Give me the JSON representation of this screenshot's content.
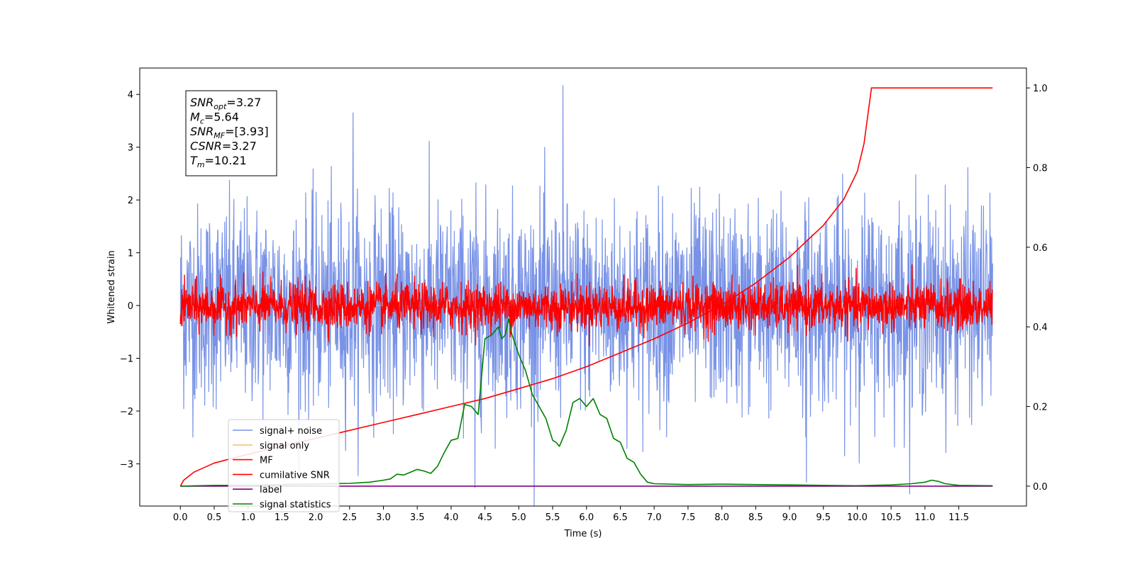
{
  "chart_data": {
    "type": "line",
    "xlabel": "Time (s)",
    "ylabel": "Whitened strain",
    "xlim": [
      -0.6,
      12.5
    ],
    "ylim": [
      -3.8,
      4.5
    ],
    "y2lim": [
      -0.05,
      1.05
    ],
    "x_ticks": [
      "0.0",
      "0.5",
      "1.0",
      "1.5",
      "2.0",
      "2.5",
      "3.0",
      "3.5",
      "4.0",
      "4.5",
      "5.0",
      "5.5",
      "6.0",
      "6.5",
      "7.0",
      "7.5",
      "8.0",
      "8.5",
      "9.0",
      "9.5",
      "10.0",
      "10.5",
      "11.0",
      "11.5"
    ],
    "y_ticks": [
      "−3",
      "−2",
      "−1",
      "0",
      "1",
      "2",
      "3",
      "4"
    ],
    "y_tick_values": [
      -3,
      -2,
      -1,
      0,
      1,
      2,
      3,
      4
    ],
    "y2_ticks": [
      "0.0",
      "0.2",
      "0.4",
      "0.6",
      "0.8",
      "1.0"
    ],
    "y2_tick_values": [
      0.0,
      0.2,
      0.4,
      0.6,
      0.8,
      1.0
    ],
    "legend": {
      "placement": "lower-left",
      "entries": [
        {
          "name": "signal+ noise",
          "color": "#7892e6"
        },
        {
          "name": "signal only",
          "color": "#f7c27a"
        },
        {
          "name": "MF",
          "color": "#ff0000"
        },
        {
          "name": "cumilative SNR",
          "color": "#ff0000"
        },
        {
          "name": "label",
          "color": "#800080"
        },
        {
          "name": "signal statistics",
          "color": "#008000"
        }
      ]
    },
    "annotation": {
      "lines": [
        {
          "sym": "SNR",
          "sub": "opt",
          "val": "=3.27"
        },
        {
          "sym": "M",
          "sub": "c",
          "val": "=5.64"
        },
        {
          "sym": "SNR",
          "sub": "MF",
          "val": "=[3.93]"
        },
        {
          "sym": "CSNR",
          "sub": "",
          "val": "=3.27"
        },
        {
          "sym": "T",
          "sub": "m",
          "val": "=10.21"
        }
      ]
    },
    "series": [
      {
        "name": "signal+ noise",
        "axis": "left",
        "color": "#7892e6",
        "x_range": [
          0,
          12
        ],
        "mean": 0.0,
        "std": 0.95,
        "peaks": [
          [
            2.55,
            3.65
          ],
          [
            5.65,
            4.17
          ],
          [
            4.35,
            -3.45
          ],
          [
            9.25,
            -3.35
          ]
        ]
      },
      {
        "name": "signal only",
        "axis": "left",
        "color": "#f7c27a",
        "x_range": [
          0,
          12
        ],
        "values": [
          0,
          0
        ]
      },
      {
        "name": "MF",
        "axis": "left",
        "color": "#ff0000",
        "x_range": [
          0,
          12
        ],
        "mean": -0.02,
        "std": 0.22
      },
      {
        "name": "cumilative SNR",
        "axis": "right",
        "color": "#ff0000",
        "x": [
          0.0,
          0.05,
          0.2,
          0.5,
          1.0,
          1.5,
          2.0,
          2.5,
          3.0,
          3.5,
          4.0,
          4.5,
          5.0,
          5.5,
          6.0,
          6.5,
          7.0,
          7.5,
          8.0,
          8.5,
          9.0,
          9.5,
          9.8,
          10.0,
          10.1,
          10.21,
          11.5,
          12.0
        ],
        "y": [
          0.0,
          0.015,
          0.035,
          0.058,
          0.08,
          0.1,
          0.12,
          0.14,
          0.16,
          0.18,
          0.2,
          0.22,
          0.245,
          0.27,
          0.3,
          0.335,
          0.37,
          0.41,
          0.455,
          0.51,
          0.575,
          0.655,
          0.72,
          0.79,
          0.86,
          1.0,
          1.0,
          1.0
        ]
      },
      {
        "name": "label",
        "axis": "right",
        "color": "#800080",
        "x": [
          0,
          12
        ],
        "y": [
          0,
          0
        ]
      },
      {
        "name": "signal statistics",
        "axis": "right",
        "color": "#008000",
        "x": [
          0.0,
          0.5,
          1.0,
          1.5,
          2.0,
          2.5,
          2.8,
          3.0,
          3.1,
          3.2,
          3.3,
          3.4,
          3.5,
          3.6,
          3.7,
          3.8,
          3.9,
          4.0,
          4.1,
          4.2,
          4.3,
          4.4,
          4.5,
          4.6,
          4.7,
          4.75,
          4.8,
          4.85,
          4.9,
          5.0,
          5.1,
          5.2,
          5.3,
          5.4,
          5.5,
          5.55,
          5.6,
          5.7,
          5.8,
          5.9,
          6.0,
          6.1,
          6.2,
          6.3,
          6.4,
          6.5,
          6.6,
          6.7,
          6.8,
          6.9,
          7.0,
          7.5,
          8.0,
          8.5,
          9.0,
          9.5,
          10.0,
          10.5,
          10.8,
          11.0,
          11.1,
          11.2,
          11.3,
          11.5,
          12.0
        ],
        "y": [
          0.0,
          0.002,
          0.002,
          0.004,
          0.005,
          0.007,
          0.01,
          0.015,
          0.018,
          0.03,
          0.028,
          0.035,
          0.042,
          0.038,
          0.032,
          0.05,
          0.085,
          0.115,
          0.12,
          0.205,
          0.2,
          0.18,
          0.37,
          0.38,
          0.4,
          0.37,
          0.38,
          0.42,
          0.38,
          0.33,
          0.29,
          0.23,
          0.2,
          0.17,
          0.115,
          0.11,
          0.1,
          0.14,
          0.21,
          0.22,
          0.2,
          0.22,
          0.18,
          0.17,
          0.12,
          0.11,
          0.07,
          0.06,
          0.03,
          0.01,
          0.006,
          0.004,
          0.005,
          0.004,
          0.003,
          0.002,
          0.001,
          0.003,
          0.006,
          0.01,
          0.015,
          0.012,
          0.006,
          0.002,
          0.001
        ]
      }
    ]
  }
}
